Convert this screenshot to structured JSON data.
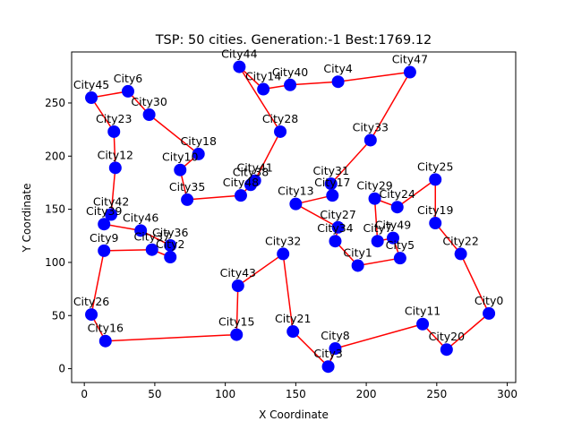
{
  "chart_data": {
    "type": "scatter",
    "title": "TSP: 50 cities.  Generation:-1 Best:1769.12",
    "xlabel": "X Coordinate",
    "ylabel": "Y Coordinate",
    "xlim": [
      -9,
      306
    ],
    "ylim": [
      -13,
      298
    ],
    "x_ticks": [
      0,
      50,
      100,
      150,
      200,
      250,
      300
    ],
    "y_ticks": [
      0,
      50,
      100,
      150,
      200,
      250
    ],
    "grid": false,
    "legend": "none",
    "colors": {
      "points": "#0000ff",
      "route": "#ff0000"
    },
    "cities": [
      {
        "name": "City0",
        "x": 287,
        "y": 52
      },
      {
        "name": "City1",
        "x": 194,
        "y": 97
      },
      {
        "name": "City2",
        "x": 61,
        "y": 105
      },
      {
        "name": "City3",
        "x": 173,
        "y": 2
      },
      {
        "name": "City4",
        "x": 180,
        "y": 270
      },
      {
        "name": "City5",
        "x": 224,
        "y": 104
      },
      {
        "name": "City6",
        "x": 31,
        "y": 261
      },
      {
        "name": "City7",
        "x": 208,
        "y": 120
      },
      {
        "name": "City8",
        "x": 178,
        "y": 19
      },
      {
        "name": "City9",
        "x": 14,
        "y": 111
      },
      {
        "name": "City10",
        "x": 68,
        "y": 187
      },
      {
        "name": "City11",
        "x": 240,
        "y": 42
      },
      {
        "name": "City12",
        "x": 22,
        "y": 189
      },
      {
        "name": "City13",
        "x": 150,
        "y": 155
      },
      {
        "name": "City14",
        "x": 127,
        "y": 263
      },
      {
        "name": "City15",
        "x": 108,
        "y": 32
      },
      {
        "name": "City16",
        "x": 15,
        "y": 26
      },
      {
        "name": "City17",
        "x": 176,
        "y": 163
      },
      {
        "name": "City18",
        "x": 81,
        "y": 202
      },
      {
        "name": "City19",
        "x": 249,
        "y": 137
      },
      {
        "name": "City20",
        "x": 257,
        "y": 18
      },
      {
        "name": "City21",
        "x": 148,
        "y": 35
      },
      {
        "name": "City22",
        "x": 267,
        "y": 108
      },
      {
        "name": "City23",
        "x": 21,
        "y": 223
      },
      {
        "name": "City24",
        "x": 222,
        "y": 152
      },
      {
        "name": "City25",
        "x": 249,
        "y": 178
      },
      {
        "name": "City26",
        "x": 5,
        "y": 51
      },
      {
        "name": "City27",
        "x": 180,
        "y": 133
      },
      {
        "name": "City28",
        "x": 139,
        "y": 223
      },
      {
        "name": "City29",
        "x": 206,
        "y": 160
      },
      {
        "name": "City30",
        "x": 46,
        "y": 239
      },
      {
        "name": "City31",
        "x": 175,
        "y": 174
      },
      {
        "name": "City32",
        "x": 141,
        "y": 108
      },
      {
        "name": "City33",
        "x": 203,
        "y": 215
      },
      {
        "name": "City34",
        "x": 178,
        "y": 120
      },
      {
        "name": "City35",
        "x": 73,
        "y": 159
      },
      {
        "name": "City36",
        "x": 61,
        "y": 116
      },
      {
        "name": "City37",
        "x": 48,
        "y": 112
      },
      {
        "name": "City38",
        "x": 118,
        "y": 173
      },
      {
        "name": "City39",
        "x": 14,
        "y": 136
      },
      {
        "name": "City40",
        "x": 146,
        "y": 267
      },
      {
        "name": "City41",
        "x": 121,
        "y": 177
      },
      {
        "name": "City42",
        "x": 19,
        "y": 145
      },
      {
        "name": "City43",
        "x": 109,
        "y": 78
      },
      {
        "name": "City44",
        "x": 110,
        "y": 284
      },
      {
        "name": "City45",
        "x": 5,
        "y": 255
      },
      {
        "name": "City46",
        "x": 40,
        "y": 130
      },
      {
        "name": "City47",
        "x": 231,
        "y": 279
      },
      {
        "name": "City48",
        "x": 111,
        "y": 163
      },
      {
        "name": "City49",
        "x": 219,
        "y": 123
      }
    ],
    "route": [
      "City0",
      "City22",
      "City19",
      "City25",
      "City24",
      "City29",
      "City7",
      "City49",
      "City5",
      "City1",
      "City34",
      "City27",
      "City13",
      "City17",
      "City31",
      "City33",
      "City47",
      "City4",
      "City40",
      "City14",
      "City44",
      "City28",
      "City41",
      "City38",
      "City48",
      "City35",
      "City10",
      "City18",
      "City30",
      "City6",
      "City45",
      "City23",
      "City12",
      "City42",
      "City39",
      "City46",
      "City36",
      "City2",
      "City37",
      "City9",
      "City26",
      "City16",
      "City15",
      "City43",
      "City32",
      "City21",
      "City3",
      "City8",
      "City11",
      "City20",
      "City0"
    ]
  }
}
